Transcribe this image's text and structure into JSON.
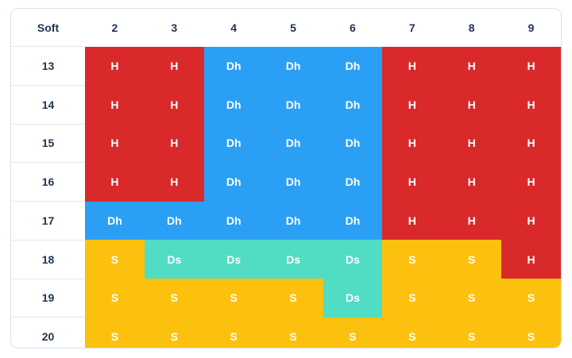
{
  "table": {
    "corner_label": "Soft",
    "columns": [
      "2",
      "3",
      "4",
      "5",
      "6",
      "7",
      "8",
      "9"
    ],
    "rows": [
      {
        "label": "13",
        "cells": [
          "H",
          "H",
          "Dh",
          "Dh",
          "Dh",
          "H",
          "H",
          "H"
        ]
      },
      {
        "label": "14",
        "cells": [
          "H",
          "H",
          "Dh",
          "Dh",
          "Dh",
          "H",
          "H",
          "H"
        ]
      },
      {
        "label": "15",
        "cells": [
          "H",
          "H",
          "Dh",
          "Dh",
          "Dh",
          "H",
          "H",
          "H"
        ]
      },
      {
        "label": "16",
        "cells": [
          "H",
          "H",
          "Dh",
          "Dh",
          "Dh",
          "H",
          "H",
          "H"
        ]
      },
      {
        "label": "17",
        "cells": [
          "Dh",
          "Dh",
          "Dh",
          "Dh",
          "Dh",
          "H",
          "H",
          "H"
        ]
      },
      {
        "label": "18",
        "cells": [
          "S",
          "Ds",
          "Ds",
          "Ds",
          "Ds",
          "S",
          "S",
          "H"
        ]
      },
      {
        "label": "19",
        "cells": [
          "S",
          "S",
          "S",
          "S",
          "Ds",
          "S",
          "S",
          "S"
        ]
      },
      {
        "label": "20",
        "cells": [
          "S",
          "S",
          "S",
          "S",
          "S",
          "S",
          "S",
          "S"
        ]
      }
    ]
  },
  "colors": {
    "H": "#d9292b",
    "Dh": "#2b9ff4",
    "S": "#fcc10e",
    "Ds": "#51dcc4",
    "header_text": "#1f3350"
  }
}
